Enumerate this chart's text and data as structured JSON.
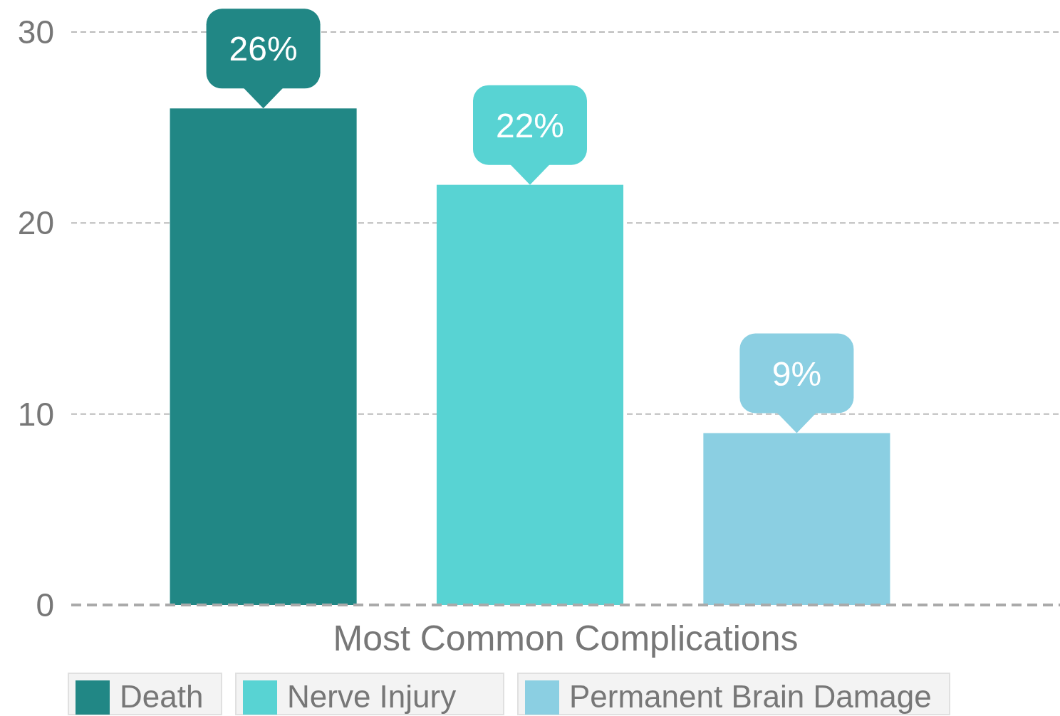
{
  "chart_data": {
    "type": "bar",
    "categories": [
      "Most Common Complications"
    ],
    "series": [
      {
        "name": "Death",
        "color": "#218785",
        "values": [
          26
        ],
        "value_labels": [
          "26%"
        ]
      },
      {
        "name": "Nerve Injury",
        "color": "#58d3d3",
        "values": [
          22
        ],
        "value_labels": [
          "22%"
        ]
      },
      {
        "name": "Permanent Brain Damage",
        "color": "#8bcfe2",
        "values": [
          9
        ],
        "value_labels": [
          "9%"
        ]
      }
    ],
    "ylim": [
      0,
      30
    ],
    "yticks": [
      0,
      10,
      20,
      30
    ],
    "grid": "y",
    "legend": "bottom"
  }
}
